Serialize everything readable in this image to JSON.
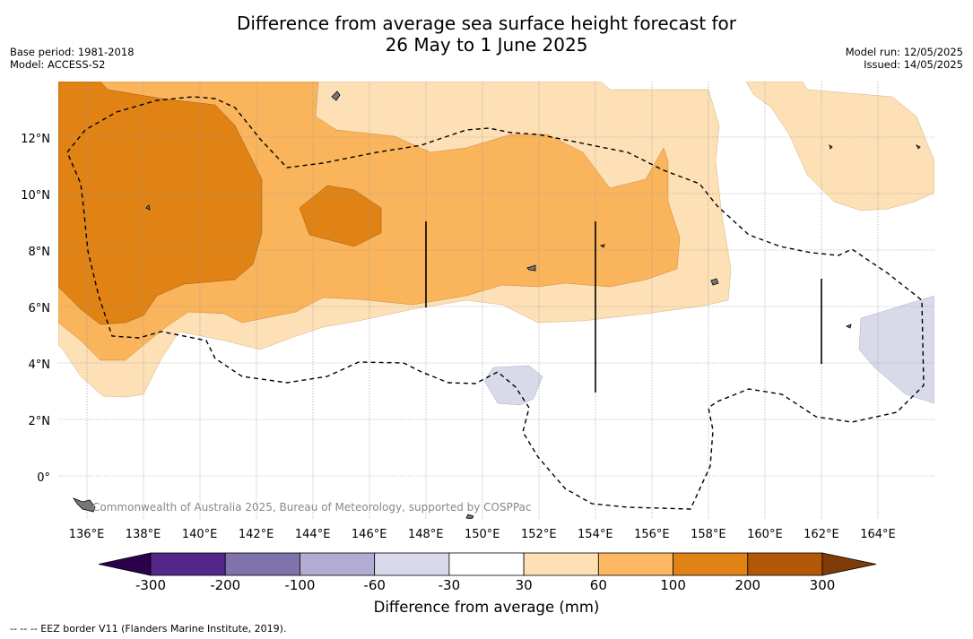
{
  "title": {
    "line1": "Difference from average sea surface height forecast for",
    "line2": "26 May to 1 June 2025"
  },
  "meta": {
    "base_period": "Base period: 1981-2018",
    "model": "Model: ACCESS-S2",
    "model_run": "Model run: 12/05/2025",
    "issued": "Issued: 14/05/2025"
  },
  "map": {
    "lon_range": [
      135,
      166
    ],
    "lat_range": [
      -1.5,
      14
    ],
    "lon_ticks": [
      "136°E",
      "138°E",
      "140°E",
      "142°E",
      "144°E",
      "146°E",
      "148°E",
      "150°E",
      "152°E",
      "154°E",
      "156°E",
      "158°E",
      "160°E",
      "162°E",
      "164°E"
    ],
    "lat_ticks": [
      "12°N",
      "10°N",
      "8°N",
      "6°N",
      "4°N",
      "2°N",
      "0°"
    ],
    "watermark": "Commonwealth of Australia 2025, Bureau of Meteorology, supported by COSPPac",
    "fill_colors": {
      "30_60": "#fde0b5",
      "60_100": "#f9b45c",
      "100_200": "#e08214",
      "-60_-30": "#d8daea"
    }
  },
  "colorbar": {
    "title": "Difference from average (mm)",
    "labels": [
      "-300",
      "-200",
      "-100",
      "-60",
      "-30",
      "30",
      "60",
      "100",
      "200",
      "300"
    ],
    "colors": [
      "#2d004b",
      "#542788",
      "#8073ac",
      "#b2abd2",
      "#d8daeb",
      "#ffffff",
      "#fee0b6",
      "#fdb863",
      "#e08214",
      "#b35806",
      "#7f3b08"
    ]
  },
  "footer": "-- -- -- EEZ border V11 (Flanders Marine Institute, 2019)."
}
